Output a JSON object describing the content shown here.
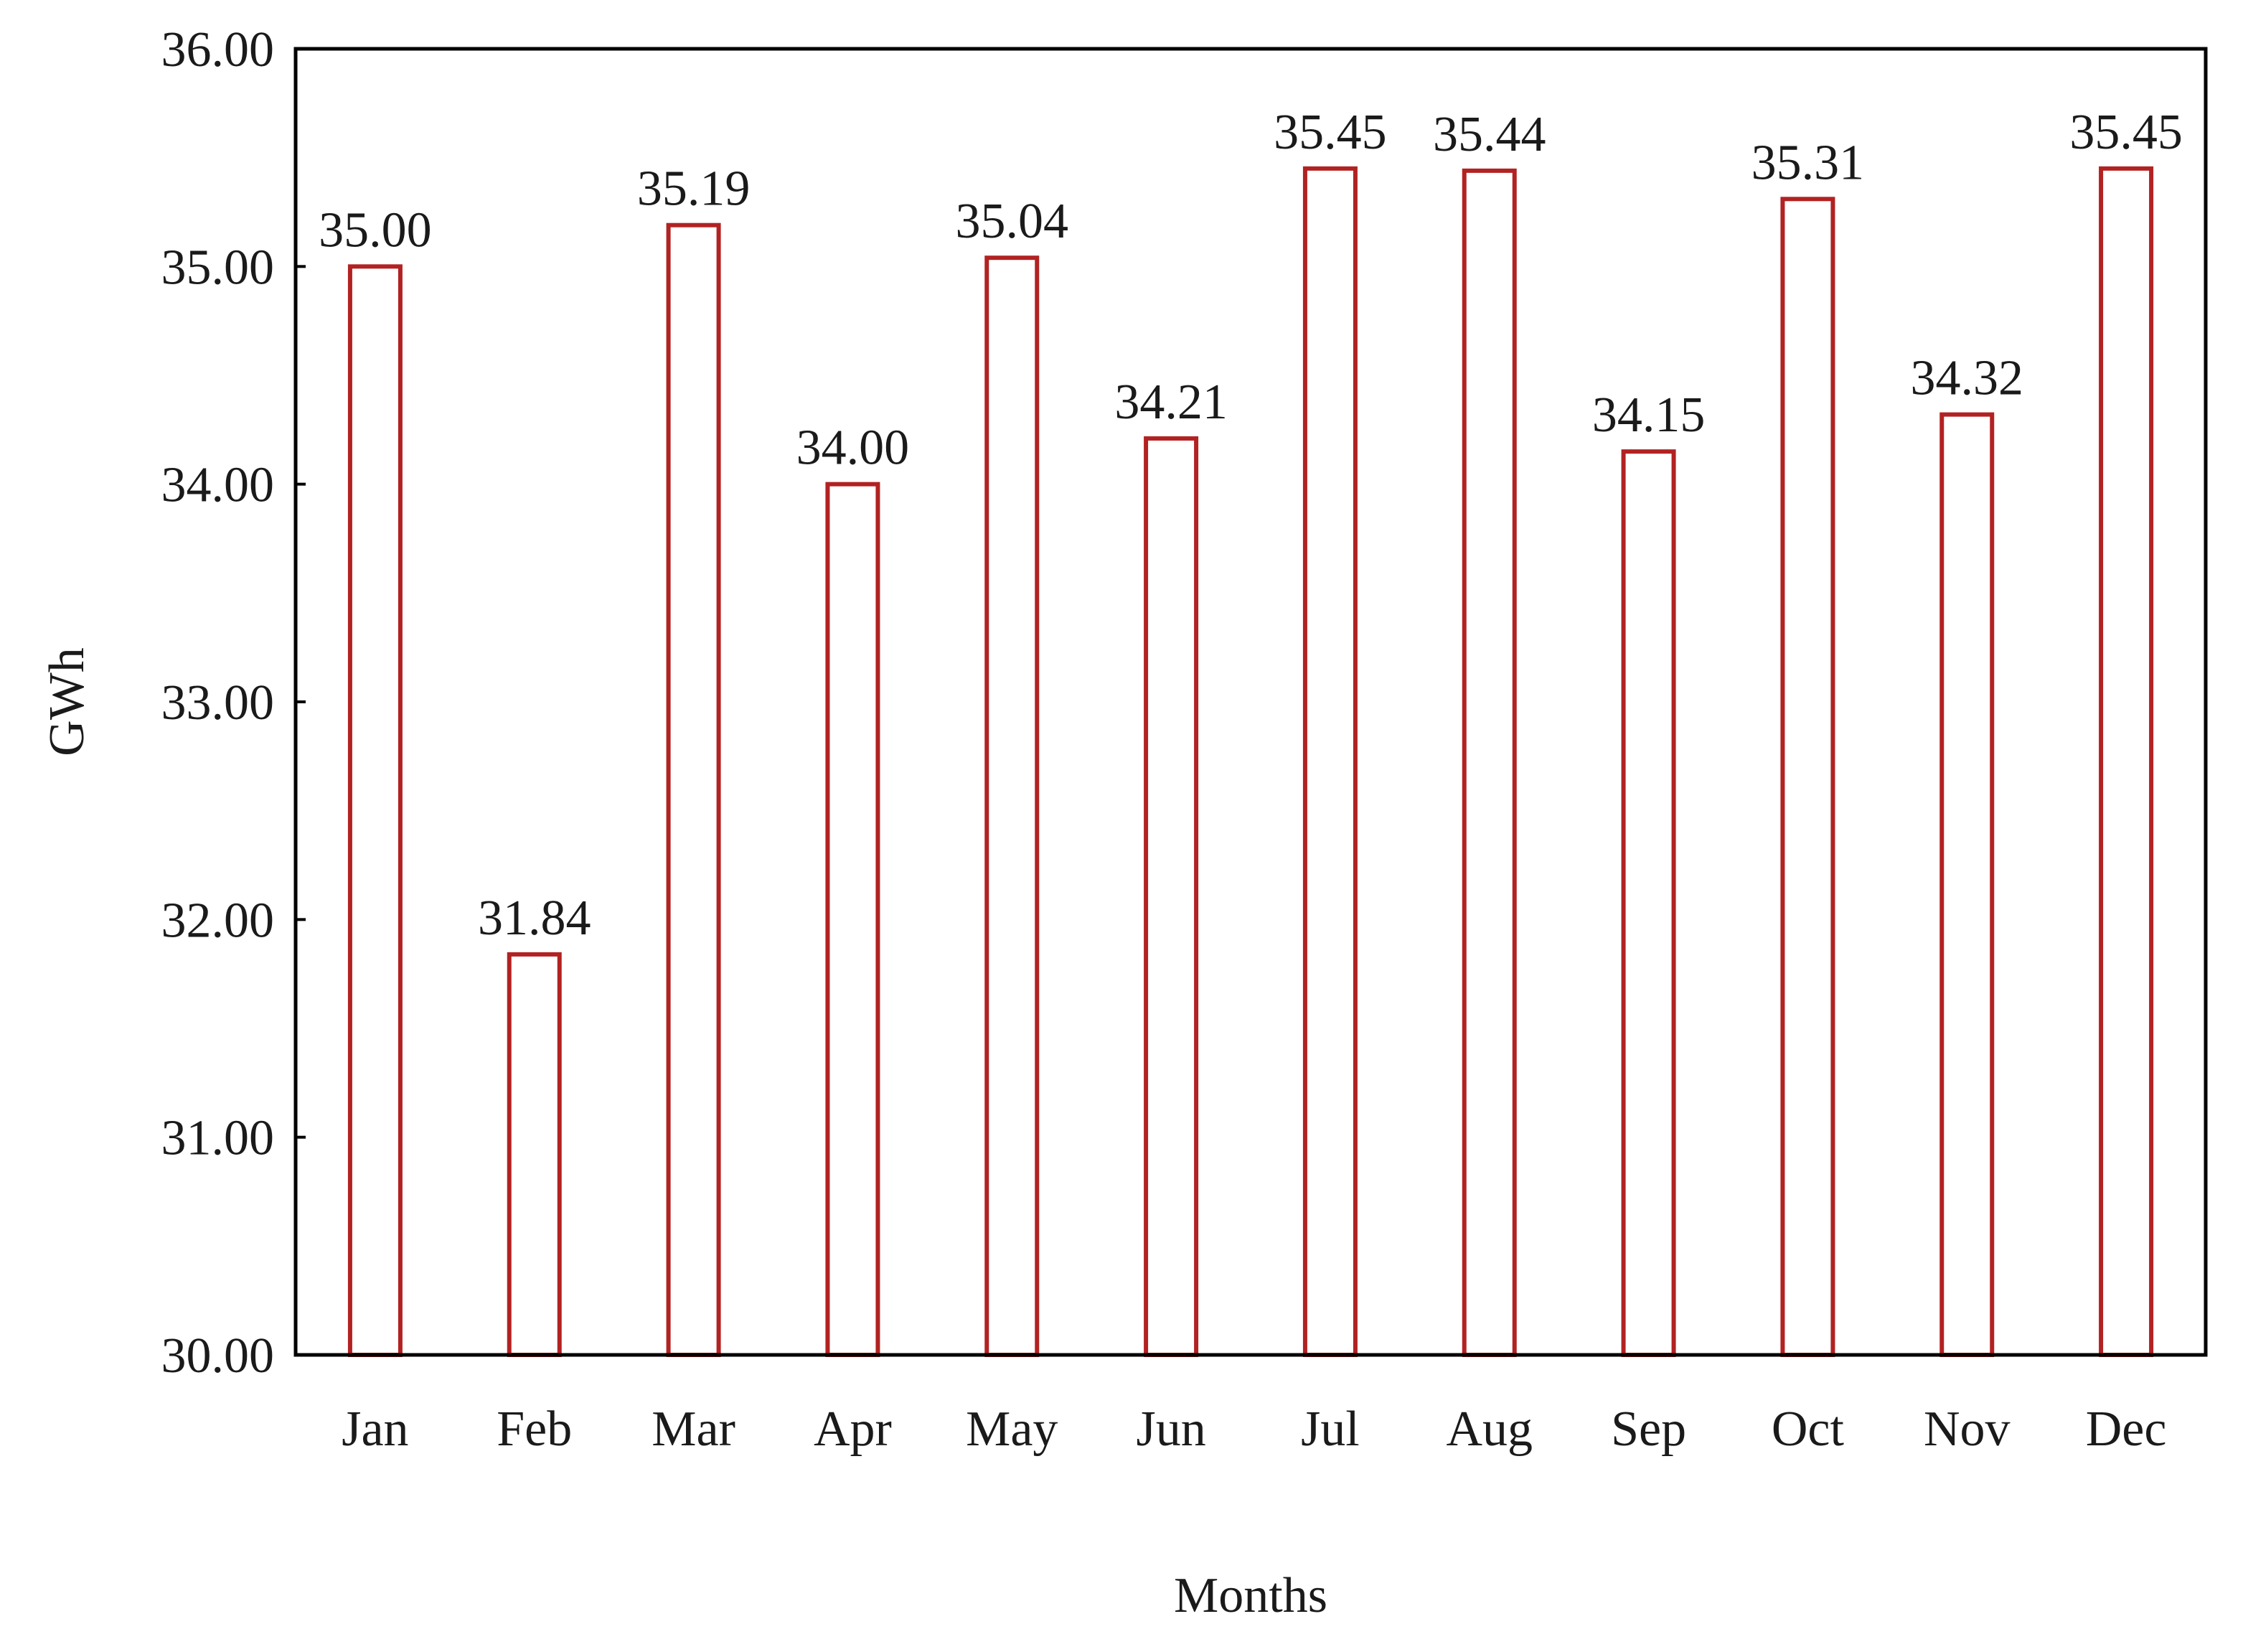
{
  "chart_data": {
    "type": "bar",
    "title": "",
    "xlabel": "Months",
    "ylabel": "GWh",
    "categories": [
      "Jan",
      "Feb",
      "Mar",
      "Apr",
      "May",
      "Jun",
      "Jul",
      "Aug",
      "Sep",
      "Oct",
      "Nov",
      "Dec"
    ],
    "values": [
      35.0,
      31.84,
      35.19,
      34.0,
      35.04,
      34.21,
      35.45,
      35.44,
      34.15,
      35.31,
      34.32,
      35.45
    ],
    "data_labels": [
      "35.00",
      "31.84",
      "35.19",
      "34.00",
      "35.04",
      "34.21",
      "35.45",
      "35.44",
      "34.15",
      "35.31",
      "34.32",
      "35.45"
    ],
    "ylim": [
      30,
      36
    ],
    "yticks": [
      30,
      31,
      32,
      33,
      34,
      35,
      36
    ],
    "ytick_labels": [
      "30.00",
      "31.00",
      "32.00",
      "33.00",
      "34.00",
      "35.00",
      "36.00"
    ],
    "grid": false,
    "legend": "none",
    "bar_style": "outlined",
    "colors": {
      "bar_stroke": "#b22222",
      "bar_fill": "#ffffff",
      "axis": "#000000",
      "text": "#1a1a1a"
    }
  }
}
